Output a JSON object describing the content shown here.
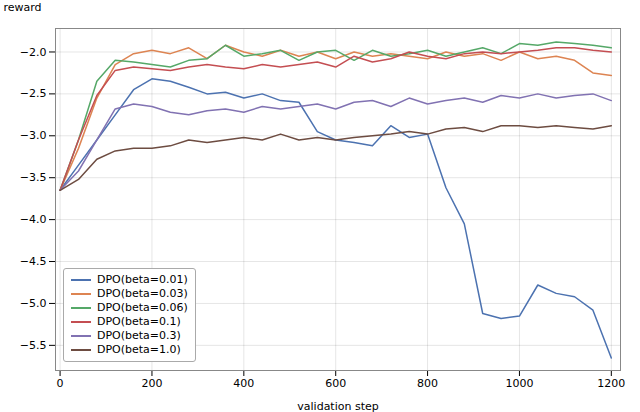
{
  "chart_data": {
    "type": "line",
    "xlabel": "validation step",
    "ylabel": "reward",
    "xlim": [
      -10,
      1220
    ],
    "ylim": [
      -5.8,
      -1.72
    ],
    "xticks": [
      0,
      200,
      400,
      600,
      800,
      1000,
      1200
    ],
    "yticks": [
      {
        "value": -2.0,
        "label": "−2.0"
      },
      {
        "value": -2.5,
        "label": "−2.5"
      },
      {
        "value": -3.0,
        "label": "−3.0"
      },
      {
        "value": -3.5,
        "label": "−3.5"
      },
      {
        "value": -4.0,
        "label": "−4.0"
      },
      {
        "value": -4.5,
        "label": "−4.5"
      },
      {
        "value": -5.0,
        "label": "−5.0"
      },
      {
        "value": -5.5,
        "label": "−5.5"
      }
    ],
    "grid": true,
    "legend": "lower left",
    "x": [
      0,
      40,
      80,
      120,
      160,
      200,
      240,
      280,
      320,
      360,
      400,
      440,
      480,
      520,
      560,
      600,
      640,
      680,
      720,
      760,
      800,
      840,
      880,
      920,
      960,
      1000,
      1040,
      1080,
      1120,
      1160,
      1200
    ],
    "series": [
      {
        "name": "DPO(beta=0.01)",
        "color": "#4c72b0",
        "values": [
          -3.65,
          -3.35,
          -3.05,
          -2.75,
          -2.45,
          -2.32,
          -2.35,
          -2.42,
          -2.5,
          -2.48,
          -2.55,
          -2.5,
          -2.58,
          -2.6,
          -2.95,
          -3.05,
          -3.08,
          -3.12,
          -2.88,
          -3.02,
          -2.98,
          -3.62,
          -4.05,
          -5.12,
          -5.18,
          -5.15,
          -4.78,
          -4.88,
          -4.92,
          -5.08,
          -5.65
        ]
      },
      {
        "name": "DPO(beta=0.03)",
        "color": "#dd8452",
        "values": [
          -3.65,
          -3.15,
          -2.55,
          -2.15,
          -2.02,
          -1.98,
          -2.02,
          -1.95,
          -2.08,
          -1.92,
          -2.0,
          -2.05,
          -1.98,
          -2.05,
          -2.0,
          -2.08,
          -2.0,
          -2.05,
          -2.02,
          -2.05,
          -2.08,
          -2.0,
          -2.05,
          -2.02,
          -2.1,
          -2.0,
          -2.08,
          -2.05,
          -2.1,
          -2.25,
          -2.28
        ]
      },
      {
        "name": "DPO(beta=0.06)",
        "color": "#55a868",
        "values": [
          -3.65,
          -3.05,
          -2.35,
          -2.1,
          -2.12,
          -2.15,
          -2.18,
          -2.1,
          -2.08,
          -1.92,
          -2.05,
          -2.02,
          -1.98,
          -2.1,
          -2.0,
          -1.98,
          -2.1,
          -1.98,
          -2.05,
          -2.02,
          -1.98,
          -2.05,
          -2.0,
          -1.95,
          -2.02,
          -1.9,
          -1.92,
          -1.88,
          -1.9,
          -1.92,
          -1.95
        ]
      },
      {
        "name": "DPO(beta=0.1)",
        "color": "#c44e52",
        "values": [
          -3.65,
          -3.05,
          -2.52,
          -2.22,
          -2.18,
          -2.2,
          -2.22,
          -2.18,
          -2.15,
          -2.18,
          -2.2,
          -2.15,
          -2.18,
          -2.15,
          -2.12,
          -2.18,
          -2.05,
          -2.12,
          -2.08,
          -2.0,
          -2.05,
          -2.08,
          -2.02,
          -2.0,
          -2.02,
          -2.0,
          -1.98,
          -1.95,
          -1.95,
          -1.98,
          -2.0
        ]
      },
      {
        "name": "DPO(beta=0.3)",
        "color": "#8172b2",
        "values": [
          -3.65,
          -3.42,
          -3.05,
          -2.68,
          -2.62,
          -2.65,
          -2.72,
          -2.75,
          -2.7,
          -2.68,
          -2.72,
          -2.65,
          -2.68,
          -2.65,
          -2.62,
          -2.68,
          -2.6,
          -2.58,
          -2.65,
          -2.55,
          -2.62,
          -2.58,
          -2.55,
          -2.6,
          -2.52,
          -2.55,
          -2.5,
          -2.55,
          -2.52,
          -2.5,
          -2.58
        ]
      },
      {
        "name": "DPO(beta=1.0)",
        "color": "#6d4c41",
        "values": [
          -3.65,
          -3.52,
          -3.28,
          -3.18,
          -3.15,
          -3.15,
          -3.12,
          -3.05,
          -3.08,
          -3.05,
          -3.02,
          -3.05,
          -2.98,
          -3.05,
          -3.02,
          -3.05,
          -3.02,
          -3.0,
          -2.98,
          -2.95,
          -2.98,
          -2.92,
          -2.9,
          -2.95,
          -2.88,
          -2.88,
          -2.9,
          -2.88,
          -2.9,
          -2.92,
          -2.88
        ]
      }
    ]
  }
}
